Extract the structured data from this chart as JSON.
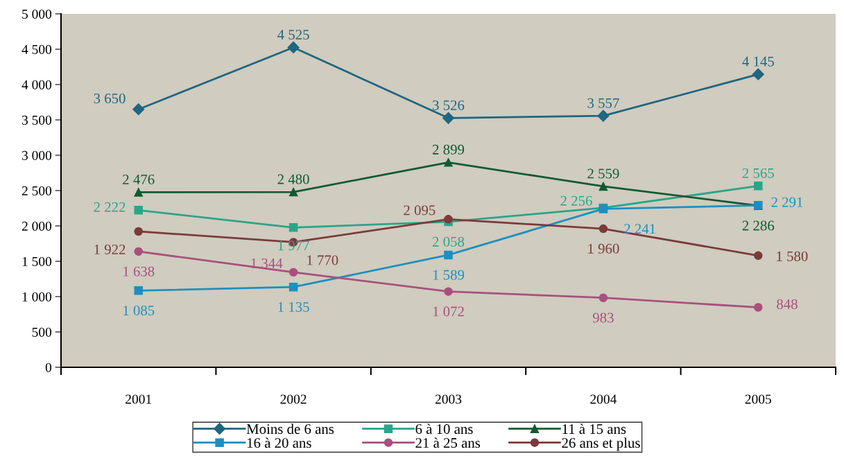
{
  "chart_data": {
    "type": "line",
    "categories": [
      "2001",
      "2002",
      "2003",
      "2004",
      "2005"
    ],
    "series": [
      {
        "name": "Moins de 6 ans",
        "color": "#1f6680",
        "marker": "diamond",
        "values": [
          3650,
          4525,
          3526,
          3557,
          4145
        ],
        "value_labels": [
          "3 650",
          "4 525",
          "3 526",
          "3 557",
          "4 145"
        ]
      },
      {
        "name": "6 à 10 ans",
        "color": "#2aa58a",
        "marker": "square",
        "values": [
          2222,
          1977,
          2058,
          2256,
          2565
        ],
        "value_labels": [
          "2 222",
          "1 977",
          "2 058",
          "2 256",
          "2 565"
        ]
      },
      {
        "name": "11 à 15 ans",
        "color": "#0f5a34",
        "marker": "triangle",
        "values": [
          2476,
          2480,
          2899,
          2559,
          2286
        ],
        "value_labels": [
          "2 476",
          "2 480",
          "2 899",
          "2 559",
          "2 286"
        ]
      },
      {
        "name": "16 à 20 ans",
        "color": "#1d8fbf",
        "marker": "square",
        "values": [
          1085,
          1135,
          1589,
          2241,
          2291
        ],
        "value_labels": [
          "1 085",
          "1 135",
          "1 589",
          "2 241",
          "2 291"
        ]
      },
      {
        "name": "21 à 25 ans",
        "color": "#a8507e",
        "marker": "circle",
        "values": [
          1638,
          1344,
          1072,
          983,
          848
        ],
        "value_labels": [
          "1 638",
          "1 344",
          "1 072",
          "983",
          "848"
        ]
      },
      {
        "name": "26 ans et plus",
        "color": "#7a3b3a",
        "marker": "circle",
        "values": [
          1922,
          1770,
          2095,
          1960,
          1580
        ],
        "value_labels": [
          "1 922",
          "1 770",
          "2 095",
          "1 960",
          "1 580"
        ]
      }
    ],
    "ylim": [
      0,
      5000
    ],
    "yticks": [
      {
        "value": 0,
        "label": "0"
      },
      {
        "value": 500,
        "label": "500"
      },
      {
        "value": 1000,
        "label": "1 000"
      },
      {
        "value": 1500,
        "label": "1 500"
      },
      {
        "value": 2000,
        "label": "2 000"
      },
      {
        "value": 2500,
        "label": "2 500"
      },
      {
        "value": 3000,
        "label": "3 000"
      },
      {
        "value": 3500,
        "label": "3 500"
      },
      {
        "value": 4000,
        "label": "4 000"
      },
      {
        "value": 4500,
        "label": "4 500"
      },
      {
        "value": 5000,
        "label": "5 000"
      }
    ],
    "grid": false,
    "legend": "bottom",
    "line_style": "solid"
  }
}
